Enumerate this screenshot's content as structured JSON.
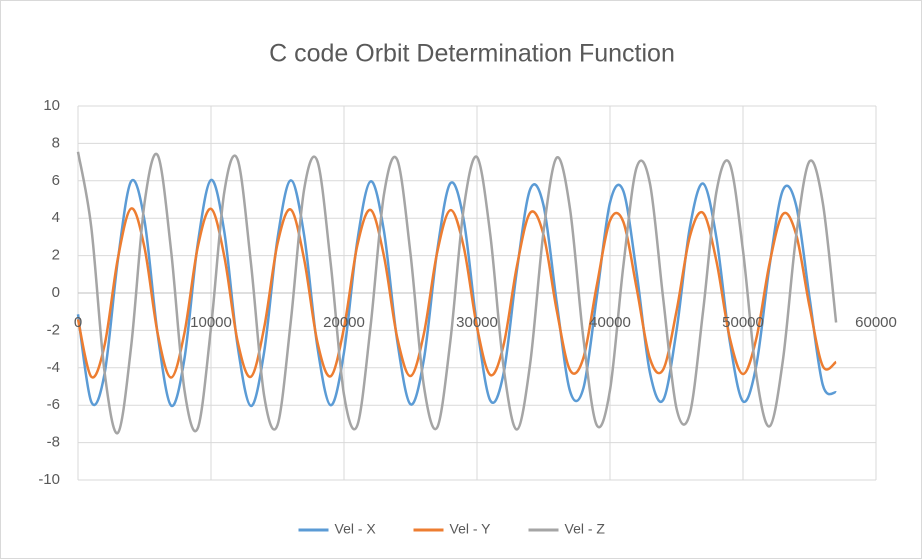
{
  "chart_data": {
    "type": "line",
    "title": "C code Orbit Determination Function",
    "x": [
      0,
      1000,
      2000,
      3000,
      4000,
      5000,
      6000,
      7000,
      8000,
      9000,
      10000,
      11000,
      12000,
      13000,
      14000,
      15000,
      16000,
      17000,
      18000,
      19000,
      20000,
      21000,
      22000,
      23000,
      24000,
      25000,
      26000,
      27000,
      28000,
      29000,
      30000,
      31000,
      32000,
      33000,
      34000,
      35000,
      36000,
      37000,
      38000,
      39000,
      40000,
      41000,
      42000,
      43000,
      44000,
      45000,
      46000,
      47000,
      48000,
      49000,
      50000,
      51000,
      52000,
      53000,
      54000,
      55000,
      56000,
      57000
    ],
    "series": [
      {
        "name": "Vel - X",
        "color": "#5b9bd5",
        "values": [
          -1.14,
          -5.82,
          -4.3,
          1.78,
          5.98,
          3.87,
          -2.26,
          -6.02,
          -3.53,
          2.61,
          6.04,
          3.28,
          -2.82,
          -6.04,
          -3.14,
          2.91,
          6.02,
          3.1,
          -2.89,
          -6.0,
          -3.17,
          2.78,
          5.97,
          3.33,
          -2.55,
          -5.95,
          -3.58,
          2.22,
          5.87,
          3.91,
          -1.77,
          -5.75,
          -4.29,
          1.21,
          5.55,
          4.69,
          -0.54,
          -5.26,
          -5.09,
          -0.24,
          4.83,
          5.46,
          1.09,
          -4.25,
          -5.72,
          -2.02,
          3.49,
          5.85,
          2.96,
          -2.56,
          -5.79,
          -3.87,
          1.47,
          5.5,
          4.67,
          -0.23,
          -4.92,
          -5.31
        ]
      },
      {
        "name": "Vel - Y",
        "color": "#ed7d31",
        "values": [
          -1.41,
          -4.48,
          -2.78,
          1.86,
          4.52,
          2.43,
          -2.2,
          -4.52,
          -2.15,
          2.44,
          4.5,
          1.96,
          -2.58,
          -4.48,
          -1.84,
          2.64,
          4.46,
          1.81,
          -2.63,
          -4.45,
          -1.86,
          2.54,
          4.44,
          1.99,
          -2.38,
          -4.44,
          -2.2,
          2.15,
          4.43,
          2.47,
          -1.83,
          -4.38,
          -2.78,
          1.44,
          4.29,
          3.12,
          -0.95,
          -4.13,
          -3.47,
          0.38,
          3.87,
          3.81,
          0.27,
          -3.5,
          -4.09,
          -0.97,
          3.01,
          4.28,
          1.71,
          -2.38,
          -4.33,
          -2.44,
          1.6,
          4.22,
          3.12,
          -0.71,
          -3.91,
          -3.69
        ]
      },
      {
        "name": "Vel - Z",
        "color": "#a5a5a5",
        "values": [
          7.55,
          3.51,
          -4.24,
          -7.48,
          -2.83,
          4.8,
          7.36,
          2.26,
          -5.17,
          -7.24,
          -1.86,
          5.4,
          7.14,
          1.62,
          -5.51,
          -7.06,
          -1.52,
          5.53,
          7.05,
          1.58,
          -5.44,
          -7.08,
          -1.77,
          5.25,
          7.13,
          2.1,
          -4.94,
          -7.2,
          -2.55,
          4.52,
          7.27,
          3.11,
          -3.97,
          -7.3,
          -3.76,
          3.27,
          7.24,
          4.47,
          -2.43,
          -7.06,
          -5.19,
          1.43,
          6.71,
          5.87,
          -0.3,
          -6.17,
          -6.46,
          -0.96,
          5.4,
          6.92,
          2.27,
          -4.37,
          -7.13,
          -3.6,
          3.08,
          7.04,
          4.82,
          -1.58
        ]
      }
    ],
    "xlim": [
      0,
      60000
    ],
    "xticks": [
      0,
      10000,
      20000,
      30000,
      40000,
      50000,
      60000
    ],
    "ylim": [
      -10,
      10
    ],
    "yticks": [
      -10,
      -8,
      -6,
      -4,
      -2,
      0,
      2,
      4,
      6,
      8,
      10
    ],
    "grid": true,
    "legend": "bottom"
  }
}
